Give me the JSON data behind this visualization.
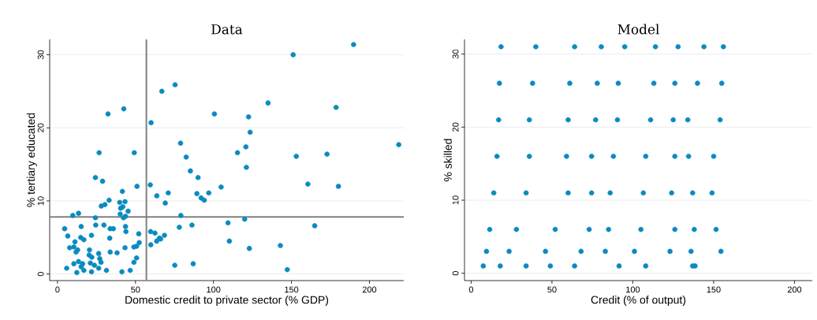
{
  "chart_data": [
    {
      "type": "scatter",
      "title": "Data",
      "xlabel": "Domestic credit to private sector (% GDP)",
      "ylabel": "% tertiary educated",
      "color": "#0a8bbf",
      "grid": "y",
      "xlim": [
        -5,
        222
      ],
      "ylim": [
        -0.9,
        32.1
      ],
      "xticks": [
        0,
        50,
        100,
        150,
        200
      ],
      "yticks": [
        0,
        10,
        20,
        30
      ],
      "ref_lines": [
        {
          "axis": "x",
          "value": 57,
          "color": "#808080"
        },
        {
          "axis": "y",
          "value": 7.8,
          "color": "#808080"
        }
      ],
      "x": [
        32.4,
        42.5,
        26.7,
        49.2,
        60.0,
        66.9,
        75.4,
        78.9,
        82.5,
        85.2,
        100.6,
        24.3,
        28.9,
        51.0,
        59.5,
        41.6,
        33.1,
        28.1,
        30.4,
        63.7,
        71.0,
        69.1,
        90.1,
        89.4,
        92.1,
        94.1,
        97.0,
        39.9,
        43.3,
        41.9,
        45.3,
        40.2,
        43.6,
        42.3,
        40.5,
        43.6,
        43.9,
        9.8,
        13.5,
        24.3,
        24.5,
        15.2,
        29.8,
        33.8,
        35.8,
        4.6,
        6.6,
        21.8,
        14.9,
        16.9,
        11.2,
        10.5,
        7.8,
        12.9,
        11.9,
        20.5,
        26.4,
        33.8,
        38.2,
        33.5,
        43.3,
        49.0,
        50.7,
        52.4,
        52.1,
        59.7,
        62.5,
        65.4,
        68.6,
        59.8,
        63.6,
        66.1,
        78.1,
        79.1,
        86.2,
        5.9,
        10.5,
        12.4,
        15.2,
        16.1,
        16.9,
        21.8,
        23.7,
        27.1,
        27.9,
        26.4,
        31.4,
        41.3,
        46.6,
        50.7,
        49.0,
        75.2,
        87.0,
        13.5,
        20.3,
        22.0,
        21.1,
        189.8,
        151.1,
        135.0,
        178.6,
        122.5,
        123.5,
        218.8,
        120.8,
        115.4,
        153.1,
        172.8,
        121.1,
        160.5,
        180.1,
        104.9,
        109.3,
        120.0,
        164.9,
        110.2,
        123.0,
        142.9,
        147.3
      ],
      "values": [
        21.9,
        22.6,
        16.6,
        16.6,
        20.7,
        25.0,
        25.9,
        17.9,
        16.0,
        14.1,
        21.9,
        13.2,
        12.7,
        12.0,
        12.2,
        11.3,
        10.1,
        9.3,
        9.5,
        10.7,
        11.1,
        9.7,
        13.2,
        11.0,
        10.4,
        10.1,
        11.1,
        9.8,
        9.9,
        9.2,
        8.6,
        8.2,
        7.9,
        7.7,
        9.0,
        6.5,
        5.8,
        8.0,
        8.3,
        7.7,
        6.7,
        6.5,
        6.7,
        6.2,
        6.2,
        6.2,
        5.2,
        5.3,
        5.0,
        4.7,
        4.4,
        3.7,
        3.6,
        3.3,
        3.0,
        3.3,
        2.8,
        3.0,
        2.9,
        4.9,
        3.6,
        3.7,
        3.8,
        4.3,
        5.5,
        5.8,
        5.6,
        4.9,
        5.3,
        4.0,
        4.5,
        4.8,
        6.4,
        8.0,
        6.7,
        0.8,
        1.4,
        0.2,
        1.0,
        1.4,
        0.5,
        0.3,
        1.2,
        2.1,
        1.6,
        0.8,
        0.5,
        0.3,
        0.5,
        2.2,
        1.6,
        1.2,
        1.4,
        1.7,
        2.6,
        2.3,
        1.5,
        31.4,
        30.0,
        23.4,
        22.8,
        21.5,
        19.4,
        17.7,
        17.4,
        16.6,
        16.1,
        16.4,
        14.6,
        12.3,
        12.0,
        11.9,
        7.0,
        7.5,
        6.6,
        4.5,
        3.5,
        3.9,
        0.6
      ]
    },
    {
      "type": "scatter",
      "title": "Model",
      "xlabel": "Credit (% of output)",
      "ylabel": "% skilled",
      "color": "#0a8bbf",
      "grid": "y",
      "xlim": [
        -4.1,
        211
      ],
      "ylim": [
        -1,
        32
      ],
      "xticks": [
        0,
        50,
        100,
        150,
        200
      ],
      "yticks": [
        0,
        10,
        20,
        30
      ],
      "x": [
        18.5,
        40,
        64,
        80.5,
        95,
        114,
        128,
        144,
        156,
        17.5,
        38,
        61,
        78,
        91,
        113,
        126,
        140,
        155,
        17,
        36,
        60,
        77,
        90.5,
        111,
        125,
        134,
        154,
        16,
        36,
        59,
        74.5,
        88,
        108,
        126,
        134.5,
        150,
        14,
        34,
        60,
        74.5,
        86,
        106.5,
        124,
        137,
        149,
        11.5,
        28,
        52,
        73,
        85,
        105,
        126,
        138,
        151.5,
        9.5,
        23.5,
        46,
        68,
        83,
        101,
        123,
        136,
        154.5,
        7.5,
        18,
        34,
        49,
        64,
        91.5,
        108,
        137,
        138.5
      ],
      "values": [
        31,
        31,
        31,
        31,
        31,
        31,
        31,
        31,
        31,
        26,
        26,
        26,
        26,
        26,
        26,
        26,
        26,
        26,
        21,
        21,
        21,
        21,
        21,
        21,
        21,
        21,
        21,
        16,
        16,
        16,
        16,
        16,
        16,
        16,
        16,
        16,
        11,
        11,
        11,
        11,
        11,
        11,
        11,
        11,
        11,
        6,
        6,
        6,
        6,
        6,
        6,
        6,
        6,
        6,
        3,
        3,
        3,
        3,
        3,
        3,
        3,
        3,
        3,
        1,
        1,
        1,
        1,
        1,
        1,
        1,
        1,
        1
      ]
    }
  ]
}
